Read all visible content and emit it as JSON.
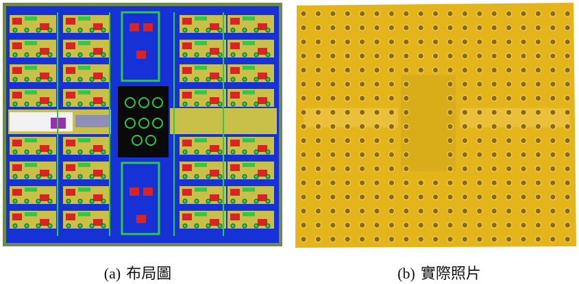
{
  "captions": {
    "a_marker": "(a)",
    "a_text": "布局圖",
    "b_marker": "(b)",
    "b_text": "實際照片"
  },
  "colors": {
    "layout_frame": "#6f8a4e",
    "layout_ground": "#1632d6",
    "layout_fill": "#c9c04a",
    "layout_green": "#2fc84a",
    "layout_red": "#d82424",
    "layout_white": "#f2f2f2",
    "layout_magenta": "#9a2fb2",
    "layout_core": "#0a0a0a",
    "photo_gold": "#e3b51b",
    "photo_via": "#8a6a10"
  }
}
